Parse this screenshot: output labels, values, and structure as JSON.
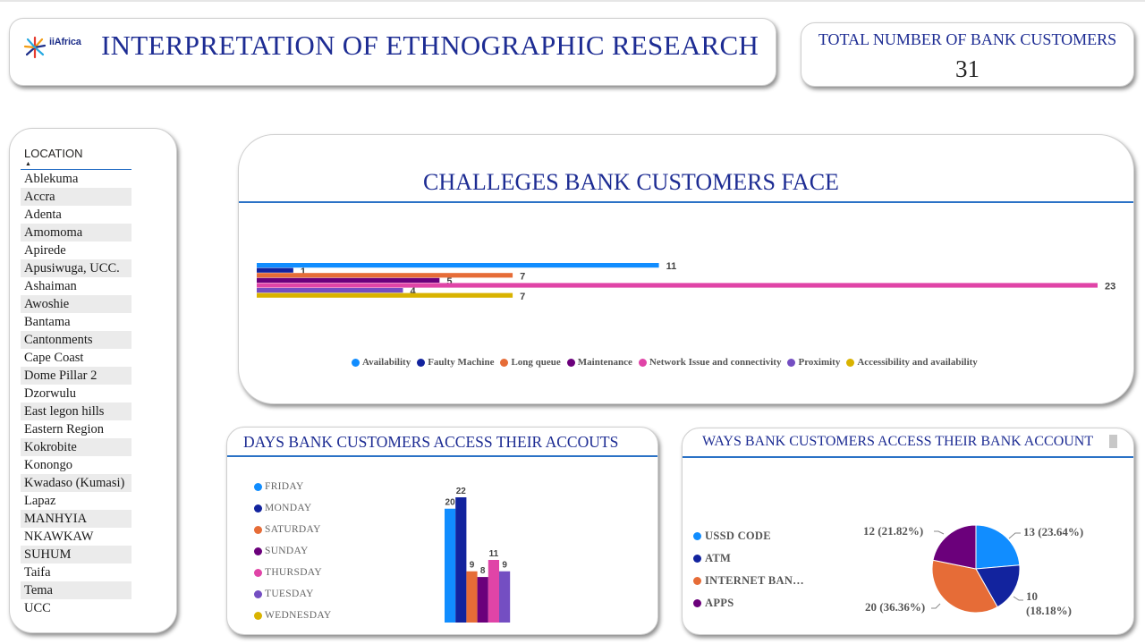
{
  "header": {
    "logo_text": "iiAfrica",
    "title": "INTERPRETATION OF ETHNOGRAPHIC RESEARCH"
  },
  "kpi": {
    "label": "TOTAL NUMBER OF BANK CUSTOMERS",
    "value": "31"
  },
  "slicer": {
    "title": "LOCATION",
    "sort_glyph": "▲",
    "items": [
      "Ablekuma",
      "Accra",
      "Adenta",
      "Amomoma",
      "Apirede",
      "Apusiwuga, UCC.",
      "Ashaiman",
      "Awoshie",
      "Bantama",
      "Cantonments",
      "Cape Coast",
      "Dome Pillar 2",
      "Dzorwulu",
      "East legon hills",
      "Eastern Region",
      "Kokrobite",
      "Konongo",
      "Kwadaso (Kumasi)",
      "Lapaz",
      "MANHYIA",
      "NKAWKAW",
      "SUHUM",
      "Taifa",
      "Tema",
      "UCC"
    ]
  },
  "chart_data": [
    {
      "type": "bar",
      "orientation": "horizontal",
      "title": "CHALLEGES BANK CUSTOMERS FACE",
      "legend_position": "bottom",
      "series": [
        {
          "name": "Availability",
          "values": [
            11
          ],
          "color": "#118dff"
        },
        {
          "name": "Faulty Machine",
          "values": [
            1
          ],
          "color": "#12239e"
        },
        {
          "name": "Long queue",
          "values": [
            7
          ],
          "color": "#e66c37"
        },
        {
          "name": "Maintenance",
          "values": [
            5
          ],
          "color": "#6b007b"
        },
        {
          "name": "Network Issue and connectivity",
          "values": [
            23
          ],
          "color": "#e044a7"
        },
        {
          "name": "Proximity",
          "values": [
            4
          ],
          "color": "#744ec2"
        },
        {
          "name": "Accessibility and availability",
          "values": [
            7
          ],
          "color": "#d9b300"
        }
      ],
      "xlim": [
        0,
        23
      ],
      "grid": false
    },
    {
      "type": "bar",
      "title": "DAYS BANK CUSTOMERS ACCESS THEIR ACCOUTS",
      "legend_position": "left",
      "series": [
        {
          "name": "FRIDAY",
          "values": [
            20
          ],
          "color": "#118dff"
        },
        {
          "name": "MONDAY",
          "values": [
            22
          ],
          "color": "#12239e"
        },
        {
          "name": "SATURDAY",
          "values": [
            9
          ],
          "color": "#e66c37"
        },
        {
          "name": "SUNDAY",
          "values": [
            8
          ],
          "color": "#6b007b"
        },
        {
          "name": "THURSDAY",
          "values": [
            11
          ],
          "color": "#e044a7"
        },
        {
          "name": "TUESDAY",
          "values": [
            9
          ],
          "color": "#744ec2"
        },
        {
          "name": "WEDNESDAY",
          "values": [],
          "color": "#d9b300"
        }
      ],
      "ylim": [
        0,
        22
      ],
      "grid": false
    },
    {
      "type": "pie",
      "title": "WAYS  BANK CUSTOMERS ACCESS THEIR BANK ACCOUNT",
      "legend_position": "left",
      "slices": [
        {
          "name": "USSD  CODE",
          "value": 13,
          "label": "13 (23.64%)",
          "color": "#118dff"
        },
        {
          "name": "ATM",
          "value": 10,
          "label_line1": "10",
          "label_line2": "(18.18%)",
          "color": "#12239e"
        },
        {
          "name": "INTERNET BAN…",
          "value": 20,
          "label": "20 (36.36%)",
          "color": "#e66c37"
        },
        {
          "name": "APPS",
          "value": 12,
          "label": "12 (21.82%)",
          "color": "#6b007b"
        }
      ]
    }
  ]
}
